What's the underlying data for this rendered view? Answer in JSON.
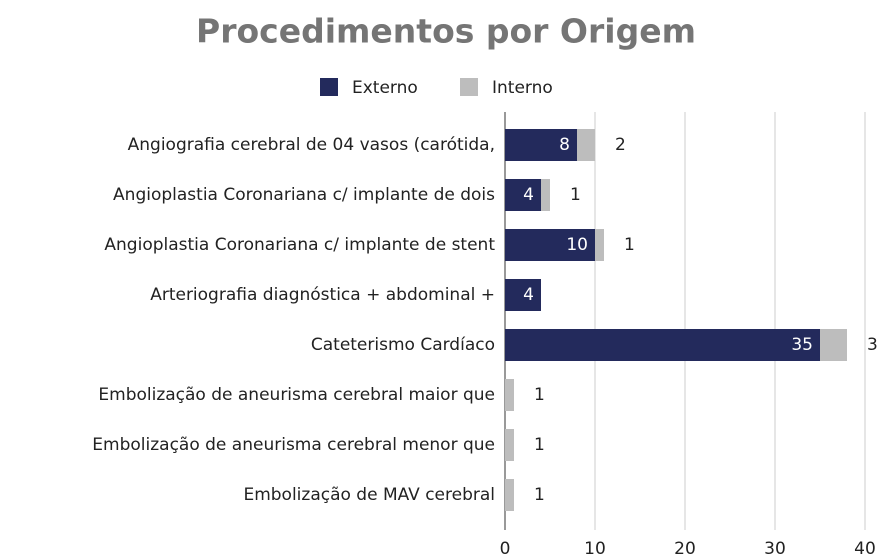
{
  "chart_data": {
    "type": "bar",
    "orientation": "horizontal",
    "stacked": true,
    "title": "Procedimentos por Origem",
    "categories": [
      "Angiografia cerebral de 04 vasos (carótida,",
      "Angioplastia Coronariana c/ implante de dois",
      "Angioplastia Coronariana c/ implante de stent",
      "Arteriografia diagnóstica + abdominal +",
      "Cateterismo Cardíaco",
      "Embolização de aneurisma cerebral maior que",
      "Embolização de aneurisma cerebral menor que",
      "Embolização de MAV cerebral"
    ],
    "series": [
      {
        "name": "Externo",
        "color": "#232a5c",
        "values": [
          8,
          4,
          10,
          4,
          35,
          null,
          null,
          null
        ]
      },
      {
        "name": "Interno",
        "color": "#bdbdbd",
        "values": [
          2,
          1,
          1,
          null,
          3,
          1,
          1,
          1
        ]
      }
    ],
    "xlim": [
      0,
      40
    ],
    "xticks": [
      0,
      10,
      20,
      30,
      40
    ],
    "grid": true,
    "legend": "top"
  }
}
